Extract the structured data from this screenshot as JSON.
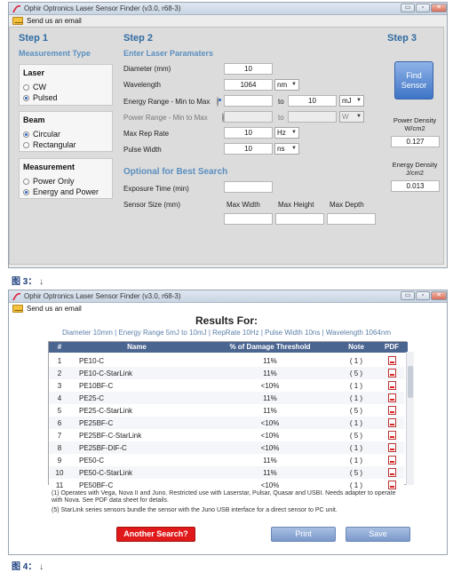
{
  "window1": {
    "title": "Ophir Optronics Laser Sensor Finder (v3.0, r68-3)",
    "controls": [
      "▭",
      "▫",
      "✕"
    ],
    "email_label": "Send us an email",
    "step1": {
      "title": "Step 1",
      "subtitle": "Measurement Type",
      "laser": {
        "title": "Laser",
        "options": [
          "CW",
          "Pulsed"
        ],
        "selected": 1
      },
      "beam": {
        "title": "Beam",
        "options": [
          "Circular",
          "Rectangular"
        ],
        "selected": 0
      },
      "measurement": {
        "title": "Measurement",
        "options": [
          "Power Only",
          "Energy and Power"
        ],
        "selected": 1
      }
    },
    "step2": {
      "title": "Step 2",
      "subtitle": "Enter Laser Paramaters",
      "diameter_label": "Diameter (mm)",
      "diameter_value": "10",
      "wavelength_label": "Wavelength",
      "wavelength_value": "1064",
      "wavelength_unit": "nm",
      "energy_label": "Energy Range - Min to Max",
      "energy_min": "",
      "to_label": "to",
      "energy_max": "10",
      "energy_unit": "mJ",
      "power_label": "Power Range - Min to Max",
      "power_min": "",
      "power_max": "",
      "power_unit": "W",
      "rep_rate_label": "Max Rep Rate",
      "rep_rate_value": "10",
      "rep_rate_unit": "Hz",
      "pulse_width_label": "Pulse Width",
      "pulse_width_value": "10",
      "pulse_width_unit": "ns",
      "optional_title": "Optional for Best Search",
      "exposure_label": "Exposure Time (min)",
      "sensor_size_label": "Sensor Size (mm)",
      "max_width_label": "Max Width",
      "max_height_label": "Max Height",
      "max_depth_label": "Max Depth"
    },
    "step3": {
      "title": "Step 3",
      "find_button_line1": "Find",
      "find_button_line2": "Sensor",
      "power_density_line1": "Power Density",
      "power_density_line2": "W/cm2",
      "power_density_value": "0.127",
      "energy_density_line1": "Energy Density",
      "energy_density_line2": "J/cm2",
      "energy_density_value": "0.013"
    }
  },
  "caption1": {
    "text": "图 3：",
    "arrow": "↓"
  },
  "window2": {
    "title": "Ophir Optronics Laser Sensor Finder (v3.0, r68-3)",
    "email_label": "Send us an email",
    "results_title": "Results For:",
    "results_subtitle": "Diameter 10mm | Energy Range 5mJ to 10mJ | RepRate 10Hz | Pulse Width 10ns | Wavelength 1064nm",
    "columns": [
      "#",
      "Name",
      "% of Damage Threshold",
      "Note",
      "PDF"
    ],
    "rows": [
      {
        "num": "1",
        "name": "PE10-C",
        "damage": "11%",
        "note": "( 1 )"
      },
      {
        "num": "2",
        "name": "PE10-C-StarLink",
        "damage": "11%",
        "note": "( 5 )"
      },
      {
        "num": "3",
        "name": "PE10BF-C",
        "damage": "<10%",
        "note": "( 1 )"
      },
      {
        "num": "4",
        "name": "PE25-C",
        "damage": "11%",
        "note": "( 1 )"
      },
      {
        "num": "5",
        "name": "PE25-C-StarLink",
        "damage": "11%",
        "note": "( 5 )"
      },
      {
        "num": "6",
        "name": "PE25BF-C",
        "damage": "<10%",
        "note": "( 1 )"
      },
      {
        "num": "7",
        "name": "PE25BF-C-StarLink",
        "damage": "<10%",
        "note": "( 5 )"
      },
      {
        "num": "8",
        "name": "PE25BF-DIF-C",
        "damage": "<10%",
        "note": "( 1 )"
      },
      {
        "num": "9",
        "name": "PE50-C",
        "damage": "11%",
        "note": "( 1 )"
      },
      {
        "num": "10",
        "name": "PE50-C-StarLink",
        "damage": "11%",
        "note": "( 5 )"
      },
      {
        "num": "11",
        "name": "PE50BF-C",
        "damage": "<10%",
        "note": "( 1 )"
      }
    ],
    "note1": "(1) Operates with Vega, Nova II and Juno. Restricted use with Laserstar, Pulsar, Quasar and USBI. Needs adapter to operate with Nova. See PDF data sheet for details.",
    "note5": "(5) StarLink series sensors bundle the sensor with the Juno USB interface for a direct sensor to PC unit.",
    "another_search": "Another Search?",
    "print": "Print",
    "save": "Save"
  },
  "caption2": {
    "text": "图 4：",
    "arrow": "↓"
  }
}
